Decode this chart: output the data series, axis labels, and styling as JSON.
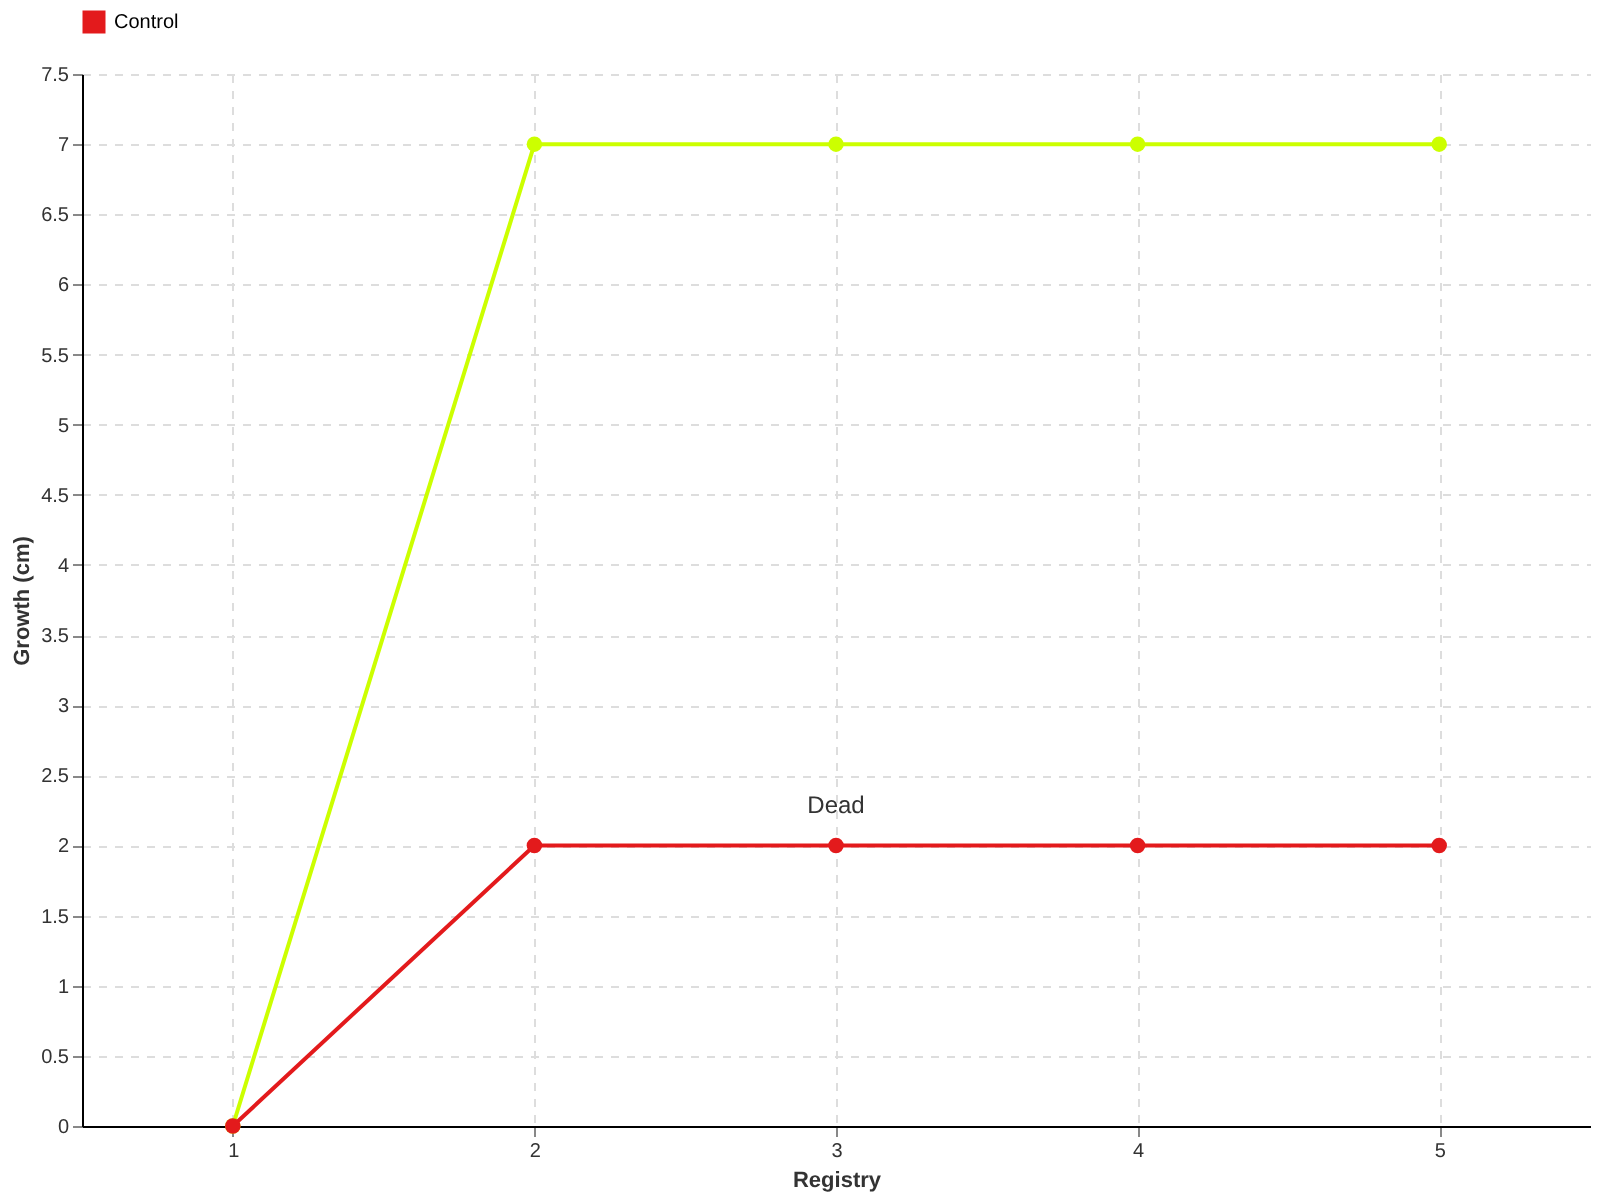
{
  "chart_data": {
    "type": "line",
    "x": [
      1,
      2,
      3,
      4,
      5
    ],
    "series": [
      {
        "color": "#ccff00",
        "values": [
          0,
          7,
          7,
          7,
          7
        ]
      },
      {
        "name": "Control",
        "color": "#e31a1c",
        "values": [
          0,
          2,
          2,
          2,
          2
        ]
      }
    ],
    "xlabel": "Registry",
    "ylabel": "Growth (cm)",
    "xlim": [
      0.5,
      5.5
    ],
    "xticks": [
      1,
      2,
      3,
      4,
      5
    ],
    "ylim": [
      0,
      7.5
    ],
    "yticks": [
      0,
      0.5,
      1,
      1.5,
      2,
      2.5,
      3,
      3.5,
      4,
      4.5,
      5,
      5.5,
      6,
      6.5,
      7,
      7.5
    ],
    "annotations": [
      {
        "text": "Dead",
        "x": 3,
        "y": 2
      }
    ],
    "grid": true,
    "legend": "top left",
    "marker": "circle",
    "line_style": "solid"
  }
}
